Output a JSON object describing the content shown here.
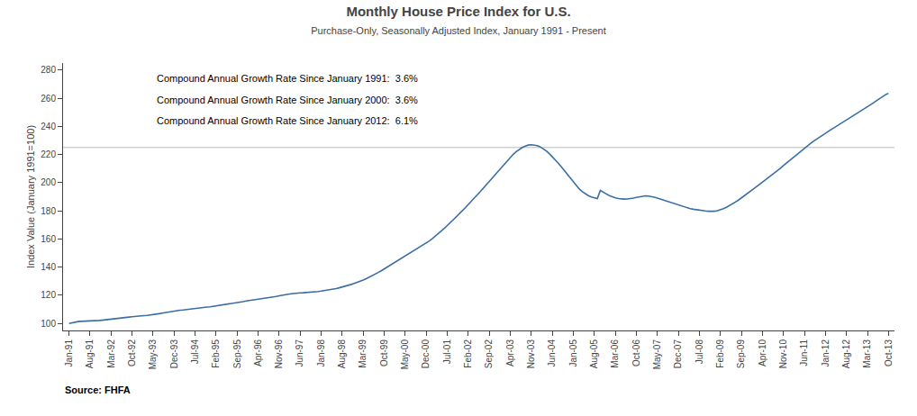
{
  "chart_data": {
    "type": "line",
    "title": "Monthly House Price Index for U.S.",
    "subtitle": "Purchase-Only, Seasonally Adjusted Index, January 1991 - Present",
    "ylabel": "Index Value (January 1991=100)",
    "source": "Source: FHFA",
    "annotations": [
      "Compound Annual Growth Rate Since January 1991:  3.6%",
      "Compound Annual Growth Rate Since January 2000:  3.6%",
      "Compound Annual Growth Rate Since January 2012:  6.1%"
    ],
    "color": "#3A6EA5",
    "reference_line": {
      "value": 225.0,
      "color": "#bbbbbb"
    },
    "ylim": [
      95,
      285
    ],
    "yticks": [
      100,
      120,
      140,
      160,
      180,
      200,
      220,
      240,
      260,
      280
    ],
    "grid": false,
    "categories": [
      "Jan-91",
      null,
      null,
      null,
      null,
      null,
      null,
      "Aug-91",
      null,
      null,
      null,
      null,
      null,
      null,
      "Mar-92",
      null,
      null,
      null,
      null,
      null,
      null,
      "Oct-92",
      null,
      null,
      null,
      null,
      null,
      null,
      "May-93",
      null,
      null,
      null,
      null,
      null,
      null,
      "Dec-93",
      null,
      null,
      null,
      null,
      null,
      null,
      "Jul-94",
      null,
      null,
      null,
      null,
      null,
      null,
      "Feb-95",
      null,
      null,
      null,
      null,
      null,
      null,
      "Sep-95",
      null,
      null,
      null,
      null,
      null,
      null,
      "Apr-96",
      null,
      null,
      null,
      null,
      null,
      null,
      "Nov-96",
      null,
      null,
      null,
      null,
      null,
      null,
      "Jun-97",
      null,
      null,
      null,
      null,
      null,
      null,
      "Jan-98",
      null,
      null,
      null,
      null,
      null,
      null,
      "Aug-98",
      null,
      null,
      null,
      null,
      null,
      null,
      "Mar-99",
      null,
      null,
      null,
      null,
      null,
      null,
      "Oct-99",
      null,
      null,
      null,
      null,
      null,
      null,
      "May-00",
      null,
      null,
      null,
      null,
      null,
      null,
      "Dec-00",
      null,
      null,
      null,
      null,
      null,
      null,
      "Jul-01",
      null,
      null,
      null,
      null,
      null,
      null,
      "Feb-02",
      null,
      null,
      null,
      null,
      null,
      null,
      "Sep-02",
      null,
      null,
      null,
      null,
      null,
      null,
      "Apr-03",
      null,
      null,
      null,
      null,
      null,
      null,
      "Nov-03",
      null,
      null,
      null,
      null,
      null,
      null,
      "Jun-04",
      null,
      null,
      null,
      null,
      null,
      null,
      "Jan-05",
      null,
      null,
      null,
      null,
      null,
      null,
      "Aug-05",
      null,
      null,
      null,
      null,
      null,
      null,
      "Mar-06",
      null,
      null,
      null,
      null,
      null,
      null,
      "Oct-06",
      null,
      null,
      null,
      null,
      null,
      null,
      "May-07",
      null,
      null,
      null,
      null,
      null,
      null,
      "Dec-07",
      null,
      null,
      null,
      null,
      null,
      null,
      "Jul-08",
      null,
      null,
      null,
      null,
      null,
      null,
      "Feb-09",
      null,
      null,
      null,
      null,
      null,
      null,
      "Sep-09",
      null,
      null,
      null,
      null,
      null,
      null,
      "Apr-10",
      null,
      null,
      null,
      null,
      null,
      null,
      "Nov-10",
      null,
      null,
      null,
      null,
      null,
      null,
      "Jun-11",
      null,
      null,
      null,
      null,
      null,
      null,
      "Jan-12",
      null,
      null,
      null,
      null,
      null,
      null,
      "Aug-12",
      null,
      null,
      null,
      null,
      null,
      null,
      "Mar-13",
      null,
      null,
      null,
      null,
      null,
      null,
      "Oct-13"
    ],
    "values": [
      100.0,
      100.5,
      101.0,
      101.3,
      101.5,
      101.6,
      101.5,
      101.4,
      101.6,
      101.9,
      102.1,
      102.3,
      102.5,
      102.7,
      103.0,
      103.2,
      103.5,
      103.7,
      103.9,
      104.2,
      104.5,
      104.8,
      105.1,
      105.3,
      105.4,
      105.6,
      105.7,
      105.9,
      106.2,
      106.5,
      106.9,
      107.3,
      107.7,
      108.1,
      108.5,
      108.9,
      109.2,
      109.4,
      109.6,
      109.9,
      110.2,
      110.5,
      110.7,
      111.0,
      111.2,
      111.4,
      111.6,
      111.8,
      112.1,
      112.4,
      112.7,
      113.0,
      113.3,
      113.6,
      113.9,
      114.3,
      114.7,
      115.1,
      115.5,
      115.9,
      116.2,
      116.5,
      116.7,
      117.0,
      117.2,
      117.5,
      117.8,
      118.2,
      118.6,
      119.1,
      119.6,
      120.1,
      120.5,
      120.8,
      121.1,
      121.4,
      121.6,
      121.7,
      121.8,
      121.9,
      122.0,
      122.2,
      122.4,
      122.7,
      123.0,
      123.3,
      123.6,
      123.9,
      124.3,
      124.8,
      125.3,
      125.8,
      126.4,
      127.0,
      127.7,
      128.4,
      129.1,
      129.9,
      130.8,
      131.8,
      132.8,
      133.9,
      135.0,
      136.2,
      137.4,
      138.7,
      140.0,
      141.3,
      142.6,
      143.9,
      145.2,
      146.5,
      147.8,
      149.1,
      150.4,
      151.7,
      153.0,
      154.3,
      155.7,
      157.1,
      158.6,
      160.2,
      161.9,
      163.7,
      165.6,
      167.5,
      169.5,
      171.5,
      173.6,
      175.7,
      177.8,
      180.0,
      182.2,
      184.4,
      186.7,
      189.0,
      191.3,
      193.7,
      196.1,
      198.5,
      200.9,
      203.4,
      205.9,
      208.4,
      210.9,
      213.4,
      215.8,
      218.1,
      220.2,
      222.1,
      223.7,
      225.0,
      226.0,
      226.7,
      226.9,
      226.8,
      226.3,
      225.4,
      224.1,
      222.5,
      220.6,
      218.5,
      216.2,
      213.8,
      211.3,
      208.7,
      206.0,
      203.2,
      200.4,
      197.8,
      195.5,
      193.6,
      192.0,
      190.8,
      189.8,
      189.1,
      188.7,
      194.5,
      193.5,
      192.0,
      190.8,
      189.9,
      189.2,
      188.7,
      188.4,
      188.3,
      188.4,
      188.6,
      189.0,
      189.5,
      190.0,
      190.4,
      190.6,
      190.5,
      190.2,
      189.7,
      189.1,
      188.4,
      187.7,
      186.9,
      186.1,
      185.3,
      184.5,
      183.8,
      183.1,
      182.5,
      182.0,
      181.5,
      181.1,
      180.7,
      180.4,
      180.1,
      179.9,
      179.7,
      179.5,
      179.7,
      180.1,
      180.7,
      181.5,
      182.5,
      183.6,
      184.8,
      186.2,
      187.6,
      189.1,
      190.7,
      192.3,
      193.9,
      195.5,
      197.1,
      198.7,
      200.3,
      201.9,
      203.5,
      205.2,
      206.9,
      208.6,
      210.3,
      212.1,
      213.9,
      215.7,
      217.5,
      219.3,
      221.1,
      222.8,
      224.5,
      226.2,
      227.8,
      229.4,
      230.9,
      232.4,
      233.8,
      235.2,
      236.6,
      237.9,
      239.2,
      240.5,
      241.8,
      243.1,
      244.4,
      245.7,
      247.0,
      248.3,
      249.6,
      251.0,
      252.4,
      253.8,
      255.3,
      256.8,
      258.3,
      259.8,
      261.3,
      262.5,
      263.5
    ]
  }
}
